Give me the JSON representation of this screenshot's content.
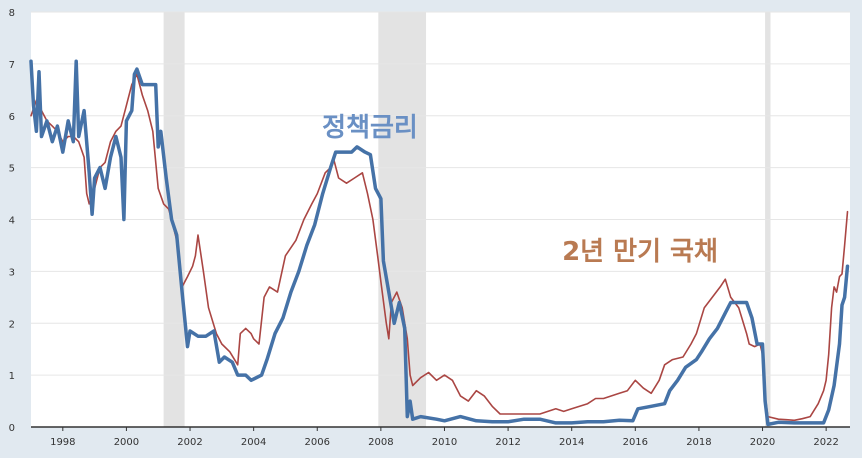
{
  "chart_data": {
    "type": "line",
    "title": "",
    "xlabel": "",
    "ylabel": "",
    "xlim": [
      1997.0,
      2022.75
    ],
    "ylim": [
      0,
      8
    ],
    "yticks": [
      0,
      1,
      2,
      3,
      4,
      5,
      6,
      7,
      8
    ],
    "xticks": [
      1998,
      2000,
      2002,
      2004,
      2006,
      2008,
      2010,
      2012,
      2014,
      2016,
      2018,
      2020,
      2022
    ],
    "grid": true,
    "legend": "none",
    "recessions": [
      [
        2001.17,
        2001.83
      ],
      [
        2007.92,
        2009.42
      ],
      [
        2020.08,
        2020.25
      ]
    ],
    "annotations": [
      {
        "text": "정책금리",
        "series": "policy_rate"
      },
      {
        "text": "2년 만기 국채",
        "series": "treasury_2y"
      }
    ],
    "series": [
      {
        "name": "정책금리",
        "key": "policy_rate",
        "color": "#4572a7",
        "points": [
          [
            1997.0,
            7.05
          ],
          [
            1997.08,
            6.2
          ],
          [
            1997.17,
            5.7
          ],
          [
            1997.25,
            6.85
          ],
          [
            1997.33,
            5.6
          ],
          [
            1997.5,
            5.9
          ],
          [
            1997.67,
            5.5
          ],
          [
            1997.83,
            5.8
          ],
          [
            1998.0,
            5.3
          ],
          [
            1998.17,
            5.9
          ],
          [
            1998.33,
            5.5
          ],
          [
            1998.42,
            7.05
          ],
          [
            1998.5,
            5.6
          ],
          [
            1998.67,
            6.1
          ],
          [
            1998.83,
            4.9
          ],
          [
            1998.92,
            4.1
          ],
          [
            1999.0,
            4.8
          ],
          [
            1999.17,
            5.0
          ],
          [
            1999.33,
            4.6
          ],
          [
            1999.5,
            5.2
          ],
          [
            1999.67,
            5.6
          ],
          [
            1999.83,
            5.2
          ],
          [
            1999.92,
            4.0
          ],
          [
            2000.0,
            5.9
          ],
          [
            2000.17,
            6.1
          ],
          [
            2000.25,
            6.8
          ],
          [
            2000.33,
            6.9
          ],
          [
            2000.5,
            6.6
          ],
          [
            2000.67,
            6.6
          ],
          [
            2000.92,
            6.6
          ],
          [
            2001.0,
            5.4
          ],
          [
            2001.08,
            5.7
          ],
          [
            2001.25,
            4.8
          ],
          [
            2001.42,
            4.0
          ],
          [
            2001.58,
            3.7
          ],
          [
            2001.75,
            2.6
          ],
          [
            2001.92,
            1.55
          ],
          [
            2002.0,
            1.85
          ],
          [
            2002.25,
            1.75
          ],
          [
            2002.5,
            1.75
          ],
          [
            2002.75,
            1.85
          ],
          [
            2002.92,
            1.25
          ],
          [
            2003.08,
            1.35
          ],
          [
            2003.33,
            1.25
          ],
          [
            2003.5,
            1.0
          ],
          [
            2003.75,
            1.0
          ],
          [
            2003.92,
            0.9
          ],
          [
            2004.25,
            1.0
          ],
          [
            2004.42,
            1.3
          ],
          [
            2004.67,
            1.8
          ],
          [
            2004.92,
            2.1
          ],
          [
            2005.17,
            2.6
          ],
          [
            2005.42,
            3.0
          ],
          [
            2005.67,
            3.5
          ],
          [
            2005.92,
            3.9
          ],
          [
            2006.17,
            4.5
          ],
          [
            2006.42,
            5.0
          ],
          [
            2006.58,
            5.3
          ],
          [
            2006.83,
            5.3
          ],
          [
            2007.08,
            5.3
          ],
          [
            2007.25,
            5.4
          ],
          [
            2007.5,
            5.3
          ],
          [
            2007.67,
            5.25
          ],
          [
            2007.83,
            4.6
          ],
          [
            2008.0,
            4.4
          ],
          [
            2008.08,
            3.2
          ],
          [
            2008.25,
            2.6
          ],
          [
            2008.42,
            2.0
          ],
          [
            2008.58,
            2.4
          ],
          [
            2008.75,
            1.9
          ],
          [
            2008.83,
            0.2
          ],
          [
            2008.92,
            0.5
          ],
          [
            2009.0,
            0.15
          ],
          [
            2009.25,
            0.2
          ],
          [
            2009.75,
            0.15
          ],
          [
            2010.0,
            0.12
          ],
          [
            2010.5,
            0.2
          ],
          [
            2011.0,
            0.12
          ],
          [
            2011.5,
            0.1
          ],
          [
            2012.0,
            0.1
          ],
          [
            2012.5,
            0.15
          ],
          [
            2013.0,
            0.15
          ],
          [
            2013.5,
            0.08
          ],
          [
            2014.0,
            0.08
          ],
          [
            2014.5,
            0.1
          ],
          [
            2015.0,
            0.1
          ],
          [
            2015.5,
            0.13
          ],
          [
            2015.92,
            0.12
          ],
          [
            2016.08,
            0.35
          ],
          [
            2016.5,
            0.4
          ],
          [
            2016.92,
            0.45
          ],
          [
            2017.08,
            0.7
          ],
          [
            2017.33,
            0.9
          ],
          [
            2017.58,
            1.15
          ],
          [
            2017.92,
            1.3
          ],
          [
            2018.08,
            1.45
          ],
          [
            2018.33,
            1.7
          ],
          [
            2018.58,
            1.9
          ],
          [
            2018.83,
            2.2
          ],
          [
            2019.0,
            2.4
          ],
          [
            2019.5,
            2.4
          ],
          [
            2019.67,
            2.1
          ],
          [
            2019.83,
            1.6
          ],
          [
            2020.0,
            1.6
          ],
          [
            2020.08,
            0.5
          ],
          [
            2020.17,
            0.05
          ],
          [
            2020.5,
            0.09
          ],
          [
            2021.0,
            0.08
          ],
          [
            2021.5,
            0.08
          ],
          [
            2021.92,
            0.08
          ],
          [
            2022.08,
            0.33
          ],
          [
            2022.25,
            0.8
          ],
          [
            2022.42,
            1.6
          ],
          [
            2022.5,
            2.35
          ],
          [
            2022.58,
            2.5
          ],
          [
            2022.67,
            3.1
          ]
        ]
      },
      {
        "name": "2년 만기 국채",
        "key": "treasury_2y",
        "color": "#aa4643",
        "points": [
          [
            1997.0,
            6.0
          ],
          [
            1997.17,
            6.3
          ],
          [
            1997.33,
            6.1
          ],
          [
            1997.5,
            5.9
          ],
          [
            1997.67,
            5.8
          ],
          [
            1997.83,
            5.7
          ],
          [
            1998.0,
            5.5
          ],
          [
            1998.17,
            5.6
          ],
          [
            1998.33,
            5.6
          ],
          [
            1998.5,
            5.5
          ],
          [
            1998.67,
            5.2
          ],
          [
            1998.75,
            4.5
          ],
          [
            1998.83,
            4.3
          ],
          [
            1999.0,
            4.6
          ],
          [
            1999.17,
            5.0
          ],
          [
            1999.33,
            5.1
          ],
          [
            1999.5,
            5.5
          ],
          [
            1999.67,
            5.7
          ],
          [
            1999.83,
            5.8
          ],
          [
            2000.0,
            6.2
          ],
          [
            2000.17,
            6.6
          ],
          [
            2000.33,
            6.8
          ],
          [
            2000.5,
            6.4
          ],
          [
            2000.67,
            6.1
          ],
          [
            2000.83,
            5.7
          ],
          [
            2001.0,
            4.6
          ],
          [
            2001.17,
            4.3
          ],
          [
            2001.33,
            4.2
          ],
          [
            2001.42,
            4.0
          ],
          [
            2001.58,
            3.6
          ],
          [
            2001.75,
            2.7
          ],
          [
            2001.92,
            2.9
          ],
          [
            2002.08,
            3.1
          ],
          [
            2002.17,
            3.3
          ],
          [
            2002.25,
            3.7
          ],
          [
            2002.42,
            3.0
          ],
          [
            2002.58,
            2.3
          ],
          [
            2002.83,
            1.8
          ],
          [
            2003.0,
            1.6
          ],
          [
            2003.25,
            1.45
          ],
          [
            2003.5,
            1.2
          ],
          [
            2003.58,
            1.8
          ],
          [
            2003.75,
            1.9
          ],
          [
            2003.92,
            1.8
          ],
          [
            2004.0,
            1.7
          ],
          [
            2004.17,
            1.6
          ],
          [
            2004.33,
            2.5
          ],
          [
            2004.5,
            2.7
          ],
          [
            2004.75,
            2.6
          ],
          [
            2005.0,
            3.3
          ],
          [
            2005.33,
            3.6
          ],
          [
            2005.58,
            4.0
          ],
          [
            2005.83,
            4.3
          ],
          [
            2006.0,
            4.5
          ],
          [
            2006.25,
            4.9
          ],
          [
            2006.42,
            5.0
          ],
          [
            2006.5,
            5.2
          ],
          [
            2006.67,
            4.8
          ],
          [
            2006.92,
            4.7
          ],
          [
            2007.17,
            4.8
          ],
          [
            2007.42,
            4.9
          ],
          [
            2007.58,
            4.5
          ],
          [
            2007.75,
            4.0
          ],
          [
            2007.92,
            3.2
          ],
          [
            2008.0,
            2.8
          ],
          [
            2008.17,
            2.0
          ],
          [
            2008.25,
            1.7
          ],
          [
            2008.33,
            2.4
          ],
          [
            2008.5,
            2.6
          ],
          [
            2008.67,
            2.3
          ],
          [
            2008.83,
            1.7
          ],
          [
            2008.92,
            1.0
          ],
          [
            2009.0,
            0.8
          ],
          [
            2009.25,
            0.95
          ],
          [
            2009.5,
            1.05
          ],
          [
            2009.75,
            0.9
          ],
          [
            2010.0,
            1.0
          ],
          [
            2010.25,
            0.9
          ],
          [
            2010.5,
            0.6
          ],
          [
            2010.75,
            0.5
          ],
          [
            2011.0,
            0.7
          ],
          [
            2011.25,
            0.6
          ],
          [
            2011.5,
            0.4
          ],
          [
            2011.75,
            0.25
          ],
          [
            2012.0,
            0.25
          ],
          [
            2012.5,
            0.25
          ],
          [
            2013.0,
            0.25
          ],
          [
            2013.5,
            0.35
          ],
          [
            2013.75,
            0.3
          ],
          [
            2014.0,
            0.35
          ],
          [
            2014.5,
            0.45
          ],
          [
            2014.75,
            0.55
          ],
          [
            2015.0,
            0.55
          ],
          [
            2015.5,
            0.65
          ],
          [
            2015.75,
            0.7
          ],
          [
            2016.0,
            0.9
          ],
          [
            2016.25,
            0.75
          ],
          [
            2016.5,
            0.65
          ],
          [
            2016.75,
            0.9
          ],
          [
            2016.92,
            1.2
          ],
          [
            2017.17,
            1.3
          ],
          [
            2017.5,
            1.35
          ],
          [
            2017.75,
            1.6
          ],
          [
            2017.92,
            1.8
          ],
          [
            2018.17,
            2.3
          ],
          [
            2018.42,
            2.5
          ],
          [
            2018.67,
            2.7
          ],
          [
            2018.83,
            2.85
          ],
          [
            2019.0,
            2.5
          ],
          [
            2019.25,
            2.3
          ],
          [
            2019.5,
            1.8
          ],
          [
            2019.58,
            1.6
          ],
          [
            2019.75,
            1.55
          ],
          [
            2019.92,
            1.6
          ],
          [
            2020.0,
            1.4
          ],
          [
            2020.08,
            0.6
          ],
          [
            2020.17,
            0.2
          ],
          [
            2020.5,
            0.15
          ],
          [
            2020.75,
            0.14
          ],
          [
            2021.0,
            0.13
          ],
          [
            2021.25,
            0.16
          ],
          [
            2021.5,
            0.2
          ],
          [
            2021.75,
            0.45
          ],
          [
            2021.92,
            0.7
          ],
          [
            2022.0,
            0.9
          ],
          [
            2022.08,
            1.4
          ],
          [
            2022.17,
            2.3
          ],
          [
            2022.25,
            2.7
          ],
          [
            2022.33,
            2.6
          ],
          [
            2022.42,
            2.9
          ],
          [
            2022.5,
            2.95
          ],
          [
            2022.58,
            3.5
          ],
          [
            2022.67,
            4.15
          ]
        ]
      }
    ]
  }
}
